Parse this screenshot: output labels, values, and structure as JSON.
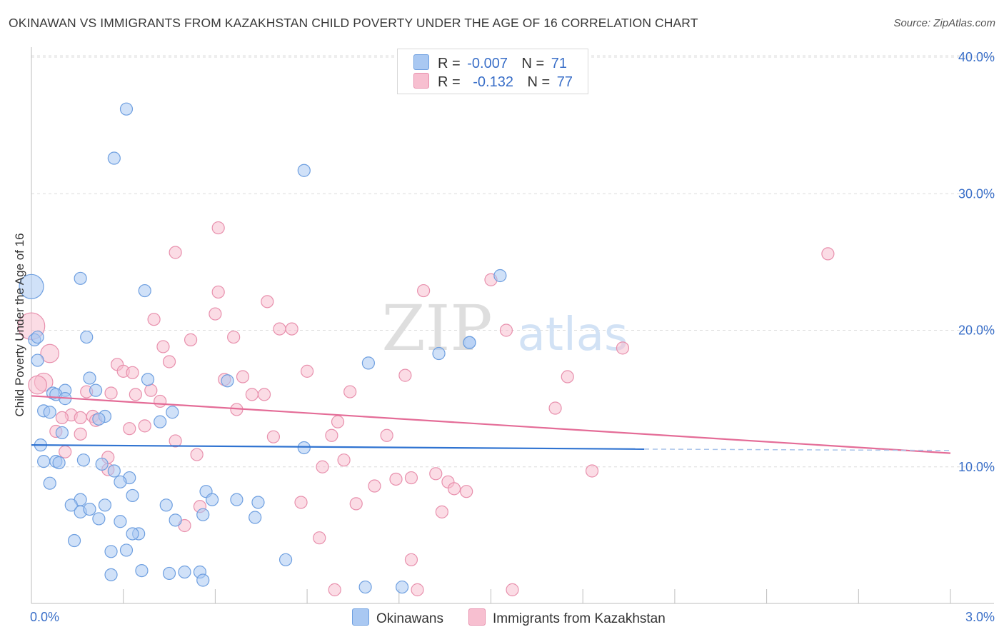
{
  "title": "OKINAWAN VS IMMIGRANTS FROM KAZAKHSTAN CHILD POVERTY UNDER THE AGE OF 16 CORRELATION CHART",
  "source": "Source: ZipAtlas.com",
  "watermark": {
    "zip": "ZIP",
    "atlas": "atlas"
  },
  "legend": {
    "r_label": "R =",
    "n_label": "N =",
    "rows": [
      {
        "r": "-0.007",
        "n": "71",
        "color": "#a9c8f2",
        "border": "#6e9fe0"
      },
      {
        "r": "-0.132",
        "n": "77",
        "color": "#f7bfd0",
        "border": "#e890ad"
      }
    ]
  },
  "bottom_legend": [
    "Okinawans",
    "Immigrants from Kazakhstan"
  ],
  "colors": {
    "blue_fill": "#a9c8f2",
    "blue_stroke": "#6e9fe0",
    "blue_line": "#2f73d1",
    "pink_fill": "#f7bfd0",
    "pink_stroke": "#e890ad",
    "pink_line": "#e46c97",
    "axis_label": "#3a6fc8",
    "grid": "#dcdcdc"
  },
  "chart_data": {
    "type": "scatter",
    "title": "OKINAWAN VS IMMIGRANTS FROM KAZAKHSTAN CHILD POVERTY UNDER THE AGE OF 16 CORRELATION CHART",
    "xlabel": "",
    "ylabel": "Child Poverty Under the Age of 16",
    "xlim": [
      0,
      3.0
    ],
    "ylim": [
      0,
      40
    ],
    "x_tick_labels": [
      "0.0%",
      "3.0%"
    ],
    "y_ticks": [
      10,
      20,
      30,
      40
    ],
    "y_tick_labels": [
      "10.0%",
      "20.0%",
      "30.0%",
      "40.0%"
    ],
    "series": [
      {
        "name": "Okinawans",
        "r": -0.007,
        "n": 71,
        "trend": {
          "x": [
            0.0,
            2.0
          ],
          "y": [
            11.6,
            11.3
          ],
          "dashed_to": 3.0,
          "dashed_y": 11.2
        },
        "points": [
          {
            "x": 0.31,
            "y": 36.2
          },
          {
            "x": 0.27,
            "y": 32.6
          },
          {
            "x": 0.89,
            "y": 31.7
          },
          {
            "x": 0.16,
            "y": 23.8
          },
          {
            "x": 0.37,
            "y": 22.9
          },
          {
            "x": 0.0,
            "y": 23.2,
            "s": 2
          },
          {
            "x": 1.53,
            "y": 24.0
          },
          {
            "x": 0.18,
            "y": 19.5
          },
          {
            "x": 0.01,
            "y": 19.3
          },
          {
            "x": 1.43,
            "y": 19.1
          },
          {
            "x": 1.43,
            "y": 19.1
          },
          {
            "x": 1.33,
            "y": 18.3
          },
          {
            "x": 1.1,
            "y": 17.6
          },
          {
            "x": 0.02,
            "y": 17.8
          },
          {
            "x": 0.19,
            "y": 16.5
          },
          {
            "x": 0.38,
            "y": 16.4
          },
          {
            "x": 0.64,
            "y": 16.3
          },
          {
            "x": 0.11,
            "y": 15.6
          },
          {
            "x": 0.21,
            "y": 15.6
          },
          {
            "x": 0.07,
            "y": 15.4
          },
          {
            "x": 0.08,
            "y": 15.3
          },
          {
            "x": 0.11,
            "y": 15.0
          },
          {
            "x": 0.04,
            "y": 14.1
          },
          {
            "x": 0.06,
            "y": 14.0
          },
          {
            "x": 0.46,
            "y": 14.0
          },
          {
            "x": 0.24,
            "y": 13.7
          },
          {
            "x": 0.22,
            "y": 13.5
          },
          {
            "x": 0.42,
            "y": 13.3
          },
          {
            "x": 0.1,
            "y": 12.5
          },
          {
            "x": 0.03,
            "y": 11.6
          },
          {
            "x": 0.89,
            "y": 11.4
          },
          {
            "x": 0.04,
            "y": 10.4
          },
          {
            "x": 0.08,
            "y": 10.4
          },
          {
            "x": 0.09,
            "y": 10.3
          },
          {
            "x": 0.17,
            "y": 10.5
          },
          {
            "x": 0.23,
            "y": 10.2
          },
          {
            "x": 0.27,
            "y": 9.7
          },
          {
            "x": 0.32,
            "y": 9.2
          },
          {
            "x": 0.06,
            "y": 8.8
          },
          {
            "x": 0.29,
            "y": 8.9
          },
          {
            "x": 0.57,
            "y": 8.2
          },
          {
            "x": 0.16,
            "y": 7.6
          },
          {
            "x": 0.33,
            "y": 7.9
          },
          {
            "x": 0.67,
            "y": 7.6
          },
          {
            "x": 0.59,
            "y": 7.6
          },
          {
            "x": 0.13,
            "y": 7.2
          },
          {
            "x": 0.24,
            "y": 7.2
          },
          {
            "x": 0.44,
            "y": 7.2
          },
          {
            "x": 0.16,
            "y": 6.7
          },
          {
            "x": 0.19,
            "y": 6.9
          },
          {
            "x": 0.56,
            "y": 6.5
          },
          {
            "x": 0.74,
            "y": 7.4
          },
          {
            "x": 0.22,
            "y": 6.2
          },
          {
            "x": 0.29,
            "y": 6.0
          },
          {
            "x": 0.47,
            "y": 6.1
          },
          {
            "x": 0.73,
            "y": 6.3
          },
          {
            "x": 0.35,
            "y": 5.1
          },
          {
            "x": 0.33,
            "y": 5.1
          },
          {
            "x": 0.14,
            "y": 4.6
          },
          {
            "x": 0.26,
            "y": 3.8
          },
          {
            "x": 0.31,
            "y": 3.9
          },
          {
            "x": 0.83,
            "y": 3.2
          },
          {
            "x": 0.36,
            "y": 2.4
          },
          {
            "x": 0.45,
            "y": 2.2
          },
          {
            "x": 0.5,
            "y": 2.3
          },
          {
            "x": 0.55,
            "y": 2.3
          },
          {
            "x": 0.26,
            "y": 2.1
          },
          {
            "x": 0.56,
            "y": 1.7
          },
          {
            "x": 1.09,
            "y": 1.2
          },
          {
            "x": 1.21,
            "y": 1.2
          },
          {
            "x": 0.02,
            "y": 19.5
          }
        ]
      },
      {
        "name": "Immigrants from Kazakhstan",
        "r": -0.132,
        "n": 77,
        "trend": {
          "x": [
            0.0,
            3.0
          ],
          "y": [
            15.2,
            11.0
          ]
        },
        "points": [
          {
            "x": 0.61,
            "y": 27.5
          },
          {
            "x": 2.6,
            "y": 25.6
          },
          {
            "x": 0.47,
            "y": 25.7
          },
          {
            "x": 1.5,
            "y": 23.7
          },
          {
            "x": 1.28,
            "y": 22.9
          },
          {
            "x": 0.61,
            "y": 22.8
          },
          {
            "x": 0.77,
            "y": 22.1
          },
          {
            "x": 0.6,
            "y": 21.2
          },
          {
            "x": 0.4,
            "y": 20.8
          },
          {
            "x": 0.0,
            "y": 20.3,
            "s": 2.2
          },
          {
            "x": 0.81,
            "y": 20.1
          },
          {
            "x": 0.85,
            "y": 20.1
          },
          {
            "x": 1.55,
            "y": 20.0
          },
          {
            "x": 0.52,
            "y": 19.3
          },
          {
            "x": 0.66,
            "y": 19.5
          },
          {
            "x": 0.43,
            "y": 18.8
          },
          {
            "x": 1.93,
            "y": 18.7
          },
          {
            "x": 0.06,
            "y": 18.3,
            "s": 1.5
          },
          {
            "x": 0.45,
            "y": 17.7
          },
          {
            "x": 0.28,
            "y": 17.5
          },
          {
            "x": 0.3,
            "y": 17.0
          },
          {
            "x": 0.33,
            "y": 16.9
          },
          {
            "x": 0.9,
            "y": 17.0
          },
          {
            "x": 1.22,
            "y": 16.7
          },
          {
            "x": 1.75,
            "y": 16.6
          },
          {
            "x": 0.69,
            "y": 16.6
          },
          {
            "x": 0.63,
            "y": 16.4
          },
          {
            "x": 0.04,
            "y": 16.2,
            "s": 1.5
          },
          {
            "x": 0.02,
            "y": 16.0,
            "s": 1.5
          },
          {
            "x": 0.39,
            "y": 15.6
          },
          {
            "x": 0.18,
            "y": 15.5
          },
          {
            "x": 0.26,
            "y": 15.4
          },
          {
            "x": 0.34,
            "y": 15.3
          },
          {
            "x": 0.72,
            "y": 15.3
          },
          {
            "x": 0.76,
            "y": 15.3
          },
          {
            "x": 1.04,
            "y": 15.5
          },
          {
            "x": 0.42,
            "y": 14.8
          },
          {
            "x": 0.67,
            "y": 14.2
          },
          {
            "x": 1.71,
            "y": 14.3
          },
          {
            "x": 0.13,
            "y": 13.8
          },
          {
            "x": 0.2,
            "y": 13.7
          },
          {
            "x": 0.16,
            "y": 13.6
          },
          {
            "x": 0.21,
            "y": 13.4
          },
          {
            "x": 0.1,
            "y": 13.6
          },
          {
            "x": 1.0,
            "y": 13.3
          },
          {
            "x": 0.37,
            "y": 13.0
          },
          {
            "x": 0.32,
            "y": 12.8
          },
          {
            "x": 0.08,
            "y": 12.6
          },
          {
            "x": 0.16,
            "y": 12.4
          },
          {
            "x": 0.98,
            "y": 12.3
          },
          {
            "x": 1.16,
            "y": 12.3
          },
          {
            "x": 0.79,
            "y": 12.2
          },
          {
            "x": 0.47,
            "y": 11.9
          },
          {
            "x": 0.11,
            "y": 11.1
          },
          {
            "x": 0.25,
            "y": 10.7
          },
          {
            "x": 0.54,
            "y": 10.9
          },
          {
            "x": 1.02,
            "y": 10.5
          },
          {
            "x": 0.95,
            "y": 10.0
          },
          {
            "x": 0.25,
            "y": 9.8
          },
          {
            "x": 1.32,
            "y": 9.5
          },
          {
            "x": 1.83,
            "y": 9.7
          },
          {
            "x": 1.24,
            "y": 9.2
          },
          {
            "x": 1.19,
            "y": 9.1
          },
          {
            "x": 1.36,
            "y": 8.9
          },
          {
            "x": 1.12,
            "y": 8.6
          },
          {
            "x": 1.38,
            "y": 8.4
          },
          {
            "x": 1.42,
            "y": 8.2
          },
          {
            "x": 0.88,
            "y": 7.4
          },
          {
            "x": 1.06,
            "y": 7.3
          },
          {
            "x": 0.55,
            "y": 7.1
          },
          {
            "x": 1.34,
            "y": 6.7
          },
          {
            "x": 0.5,
            "y": 5.7
          },
          {
            "x": 0.94,
            "y": 4.8
          },
          {
            "x": 1.24,
            "y": 3.2
          },
          {
            "x": 0.99,
            "y": 1.0
          },
          {
            "x": 1.26,
            "y": 1.0
          },
          {
            "x": 1.57,
            "y": 1.0
          }
        ]
      }
    ]
  }
}
